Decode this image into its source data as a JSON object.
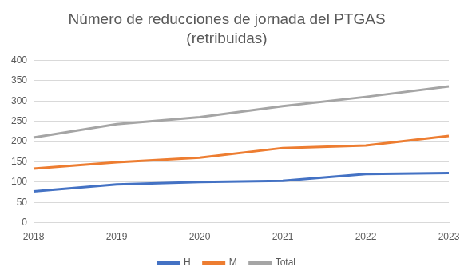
{
  "chart_data": {
    "type": "line",
    "title": [
      "Número de reducciones de jornada del PTGAS",
      "(retribuidas)"
    ],
    "categories": [
      "2018",
      "2019",
      "2020",
      "2021",
      "2022",
      "2023"
    ],
    "series": [
      {
        "name": "H",
        "color": "#4472c4",
        "values": [
          77,
          94,
          100,
          103,
          120,
          122
        ]
      },
      {
        "name": "M",
        "color": "#ed7d31",
        "values": [
          133,
          149,
          160,
          184,
          190,
          214
        ]
      },
      {
        "name": "Total",
        "color": "#a5a5a5",
        "values": [
          210,
          243,
          260,
          287,
          310,
          336
        ]
      }
    ],
    "ylim": [
      0,
      400
    ],
    "yticks": [
      0,
      50,
      100,
      150,
      200,
      250,
      300,
      350,
      400
    ],
    "grid": true,
    "legend": "bottom"
  }
}
